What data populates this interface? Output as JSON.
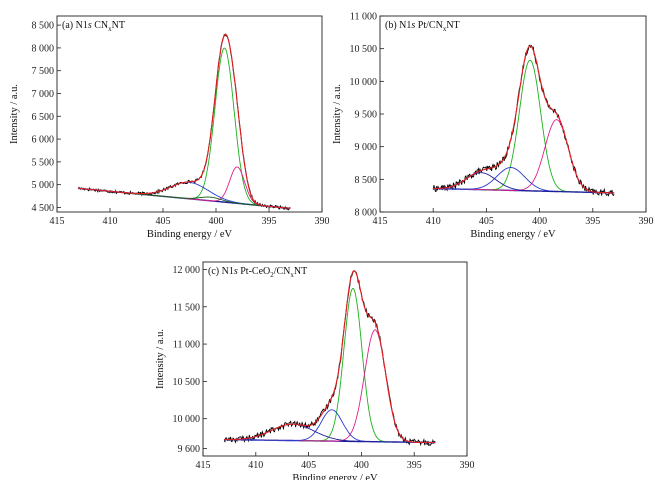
{
  "chart_data": [
    {
      "type": "line",
      "title": {
        "prefix": "(a) N1",
        "s": "s",
        "main": " CN",
        "sub": "x",
        "suffix": "NT"
      },
      "xlabel": "Binding energy / eV",
      "ylabel": "Intensity / a.u.",
      "xlim": [
        415,
        390
      ],
      "ylim": [
        4400,
        8700
      ],
      "xticks": [
        415,
        410,
        405,
        400,
        395,
        390
      ],
      "xtick_labels": [
        "415",
        "410",
        "405",
        "400",
        "395",
        "390"
      ],
      "yticks": [
        4500,
        5000,
        5500,
        6000,
        6500,
        7000,
        7500,
        8000,
        8500
      ],
      "ytick_labels": [
        "4 500",
        "5 000",
        "5 500",
        "6 000",
        "6 500",
        "7 000",
        "7 500",
        "8 000",
        "8 500"
      ],
      "baseline": {
        "x": [
          413,
          403
        ],
        "y": [
          4920,
          4700
        ]
      },
      "data_range": [
        413,
        393
      ],
      "noise_amp": 35,
      "peaks": [
        {
          "name": "green",
          "center": 399.2,
          "height": 3380,
          "width": 0.9,
          "color": "#1bb11b"
        },
        {
          "name": "magenta",
          "center": 398.0,
          "height": 800,
          "width": 0.7,
          "color": "#e0208a"
        },
        {
          "name": "blue",
          "center": 402.5,
          "height": 360,
          "width": 1.8,
          "color": "#2a3ad0"
        },
        {
          "name": "darkgreen",
          "center": 400.5,
          "height": 80,
          "width": 1.0,
          "color": "#0e5f0e"
        }
      ],
      "colors": {
        "raw": "#000000",
        "envelope": "#e02020",
        "background": "#1e1e9a"
      }
    },
    {
      "type": "line",
      "title": {
        "prefix": "(b) N1",
        "s": "s",
        "main": " Pt/CN",
        "sub": "x",
        "suffix": "NT"
      },
      "xlabel": "Binding energy / eV",
      "ylabel": "Intensity / a.u.",
      "xlim": [
        415,
        390
      ],
      "ylim": [
        8000,
        11000
      ],
      "xticks": [
        415,
        410,
        405,
        400,
        395,
        390
      ],
      "xtick_labels": [
        "415",
        "410",
        "405",
        "400",
        "395",
        "390"
      ],
      "yticks": [
        8000,
        8500,
        9000,
        9500,
        10000,
        10500,
        11000
      ],
      "ytick_labels": [
        "8 000",
        "8 500",
        "9 000",
        "9 500",
        "10 000",
        "10 500",
        "11 000"
      ],
      "baseline": {
        "x": [
          410,
          395
        ],
        "y": [
          8360,
          8300
        ]
      },
      "data_range": [
        410,
        393
      ],
      "noise_amp": 50,
      "peaks": [
        {
          "name": "green",
          "center": 400.9,
          "height": 2000,
          "width": 1.0,
          "color": "#1bb11b"
        },
        {
          "name": "magenta",
          "center": 398.4,
          "height": 1100,
          "width": 1.1,
          "color": "#e0208a"
        },
        {
          "name": "blue",
          "center": 402.7,
          "height": 350,
          "width": 1.3,
          "color": "#2a3ad0"
        },
        {
          "name": "navy",
          "center": 405.5,
          "height": 260,
          "width": 1.4,
          "color": "#1e1e9a"
        }
      ],
      "colors": {
        "raw": "#000000",
        "envelope": "#e02020",
        "background": "#1e1e9a"
      }
    },
    {
      "type": "line",
      "title": {
        "prefix": "(c) N1",
        "s": "s",
        "main": " Pt-CeO",
        "sub": "2",
        "suffix": "/CN",
        "sub2": "x",
        "suffix2": "NT"
      },
      "xlabel": "Binding energy / eV",
      "ylabel": "Intensity / a.u.",
      "xlim": [
        415,
        390
      ],
      "ylim": [
        9500,
        12100
      ],
      "xticks": [
        415,
        410,
        405,
        400,
        395,
        390
      ],
      "xtick_labels": [
        "415",
        "410",
        "405",
        "400",
        "395",
        "390"
      ],
      "yticks": [
        9600,
        10000,
        10500,
        11000,
        11500,
        12000
      ],
      "ytick_labels": [
        "9 600",
        "10 000",
        "10 500",
        "11 000",
        "11 500",
        "12 000"
      ],
      "baseline": {
        "x": [
          413,
          393
        ],
        "y": [
          9720,
          9680
        ]
      },
      "data_range": [
        413,
        393
      ],
      "noise_amp": 40,
      "peaks": [
        {
          "name": "green",
          "center": 400.8,
          "height": 2050,
          "width": 0.85,
          "color": "#1bb11b"
        },
        {
          "name": "magenta",
          "center": 398.7,
          "height": 1500,
          "width": 1.0,
          "color": "#e0208a"
        },
        {
          "name": "blue",
          "center": 402.8,
          "height": 420,
          "width": 1.0,
          "color": "#2a3ad0"
        },
        {
          "name": "navy",
          "center": 406.5,
          "height": 220,
          "width": 2.0,
          "color": "#1e1e9a"
        }
      ],
      "colors": {
        "raw": "#000000",
        "envelope": "#e02020",
        "background": "#1e1e9a"
      }
    }
  ]
}
